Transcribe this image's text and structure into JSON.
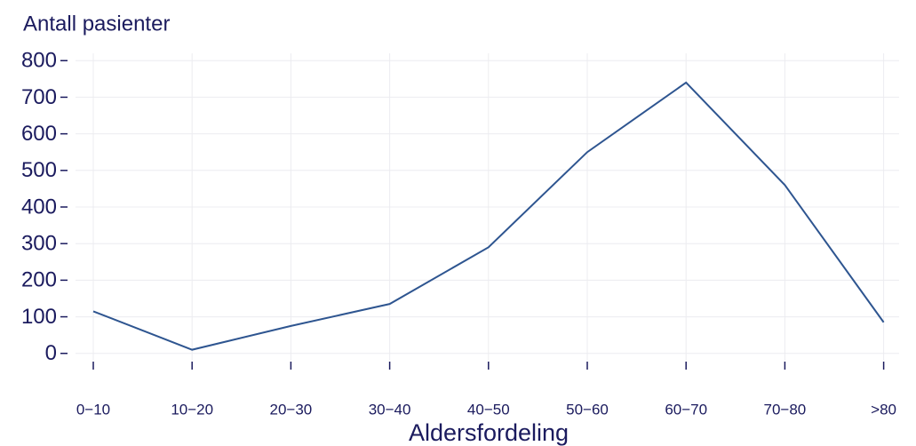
{
  "chart_data": {
    "type": "line",
    "y_label": "Antall pasienter",
    "x_label": "Aldersfordeling",
    "categories": [
      "0−10",
      "10−20",
      "20−30",
      "30−40",
      "40−50",
      "50−60",
      "60−70",
      "70−80",
      ">80"
    ],
    "values": [
      115,
      10,
      75,
      135,
      290,
      550,
      740,
      460,
      85
    ],
    "color": "#2e5590",
    "ylim": [
      -20,
      820
    ],
    "yticks": [
      0,
      100,
      200,
      300,
      400,
      500,
      600,
      700,
      800
    ],
    "grid": true
  }
}
